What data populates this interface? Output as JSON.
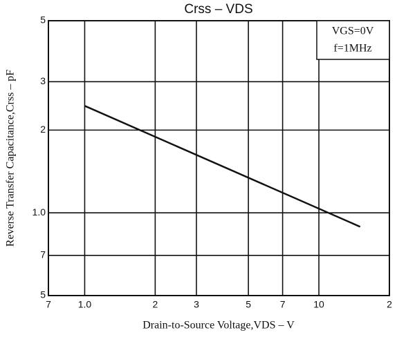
{
  "chart_data": {
    "type": "line",
    "title": "Crss  –  VDS",
    "xlabel": "Drain-to-Source Voltage,VDS – V",
    "ylabel": "Reverse Transfer Capacitance,Crss – pF",
    "annotations": [
      "VGS=0V",
      "f=1MHz"
    ],
    "x": [
      1.0,
      15
    ],
    "series": [
      {
        "name": "Crss",
        "color": "#111111",
        "values": [
          2.45,
          0.89
        ]
      }
    ],
    "xscale": "log",
    "yscale": "log",
    "xlim": [
      0.7,
      20
    ],
    "ylim": [
      0.5,
      5
    ],
    "xticks": [
      {
        "value": 0.7,
        "label": "7"
      },
      {
        "value": 1,
        "label": "1.0"
      },
      2,
      3,
      5,
      7,
      10,
      {
        "value": 20,
        "label": "2"
      }
    ],
    "yticks": [
      {
        "value": 0.5,
        "label": "5"
      },
      {
        "value": 0.7,
        "label": "7"
      },
      {
        "value": 1,
        "label": "1.0"
      },
      2,
      3,
      5
    ],
    "grid": true
  }
}
